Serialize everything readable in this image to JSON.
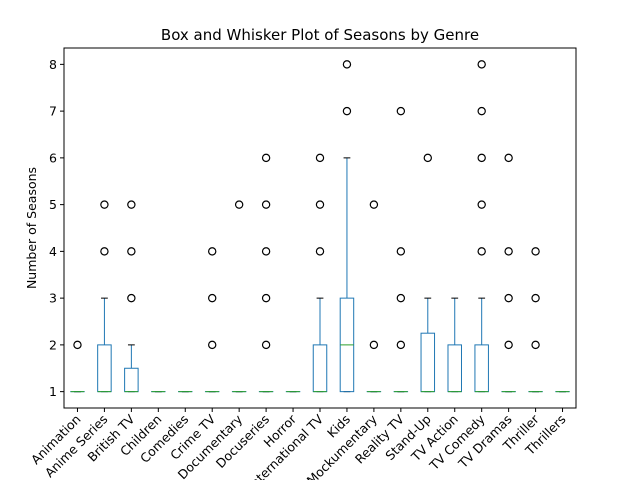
{
  "chart_data": {
    "type": "box",
    "title": "Box and Whisker Plot of Seasons by Genre",
    "xlabel": "",
    "ylabel": "Number of Seasons",
    "ylim": [
      0.65,
      8.35
    ],
    "yticks": [
      1,
      2,
      3,
      4,
      5,
      6,
      7,
      8
    ],
    "grid": false,
    "colors": {
      "box": "#1f77b4",
      "median": "#2ca02c",
      "outlier": "#000000",
      "axis": "#000000"
    },
    "categories": [
      "Animation",
      "Anime Series",
      "British TV",
      "Children",
      "Comedies",
      "Crime TV",
      "Documentary",
      "Docuseries",
      "Horror",
      "International TV",
      "Kids",
      "Mockumentary",
      "Reality TV",
      "Stand-Up",
      "TV Action",
      "TV Comedy",
      "TV Dramas",
      "Thriller",
      "Thrillers"
    ],
    "boxes": [
      {
        "q1": 1,
        "median": 1,
        "q3": 1,
        "whislo": 1,
        "whishi": 1,
        "fliers": [
          2
        ]
      },
      {
        "q1": 1,
        "median": 1,
        "q3": 2,
        "whislo": 1,
        "whishi": 3,
        "fliers": [
          4,
          5
        ]
      },
      {
        "q1": 1,
        "median": 1,
        "q3": 1.5,
        "whislo": 1,
        "whishi": 2,
        "fliers": [
          3,
          4,
          5
        ]
      },
      {
        "q1": 1,
        "median": 1,
        "q3": 1,
        "whislo": 1,
        "whishi": 1,
        "fliers": []
      },
      {
        "q1": 1,
        "median": 1,
        "q3": 1,
        "whislo": 1,
        "whishi": 1,
        "fliers": []
      },
      {
        "q1": 1,
        "median": 1,
        "q3": 1,
        "whislo": 1,
        "whishi": 1,
        "fliers": [
          2,
          3,
          4
        ]
      },
      {
        "q1": 1,
        "median": 1,
        "q3": 1,
        "whislo": 1,
        "whishi": 1,
        "fliers": [
          5
        ]
      },
      {
        "q1": 1,
        "median": 1,
        "q3": 1,
        "whislo": 1,
        "whishi": 1,
        "fliers": [
          2,
          3,
          4,
          5,
          6
        ]
      },
      {
        "q1": 1,
        "median": 1,
        "q3": 1,
        "whislo": 1,
        "whishi": 1,
        "fliers": []
      },
      {
        "q1": 1,
        "median": 1,
        "q3": 2,
        "whislo": 1,
        "whishi": 3,
        "fliers": [
          4,
          5,
          6
        ]
      },
      {
        "q1": 1,
        "median": 2,
        "q3": 3,
        "whislo": 1,
        "whishi": 6,
        "fliers": [
          7,
          8
        ]
      },
      {
        "q1": 1,
        "median": 1,
        "q3": 1,
        "whislo": 1,
        "whishi": 1,
        "fliers": [
          2,
          5
        ]
      },
      {
        "q1": 1,
        "median": 1,
        "q3": 1,
        "whislo": 1,
        "whishi": 1,
        "fliers": [
          2,
          3,
          4,
          7
        ]
      },
      {
        "q1": 1,
        "median": 1,
        "q3": 2.25,
        "whislo": 1,
        "whishi": 3,
        "fliers": [
          6
        ]
      },
      {
        "q1": 1,
        "median": 1,
        "q3": 2,
        "whislo": 1,
        "whishi": 3,
        "fliers": []
      },
      {
        "q1": 1,
        "median": 1,
        "q3": 2,
        "whislo": 1,
        "whishi": 3,
        "fliers": [
          4,
          5,
          6,
          7,
          8
        ]
      },
      {
        "q1": 1,
        "median": 1,
        "q3": 1,
        "whislo": 1,
        "whishi": 1,
        "fliers": [
          2,
          3,
          4,
          6
        ]
      },
      {
        "q1": 1,
        "median": 1,
        "q3": 1,
        "whislo": 1,
        "whishi": 1,
        "fliers": [
          2,
          3,
          4
        ]
      },
      {
        "q1": 1,
        "median": 1,
        "q3": 1,
        "whislo": 1,
        "whishi": 1,
        "fliers": []
      }
    ]
  }
}
